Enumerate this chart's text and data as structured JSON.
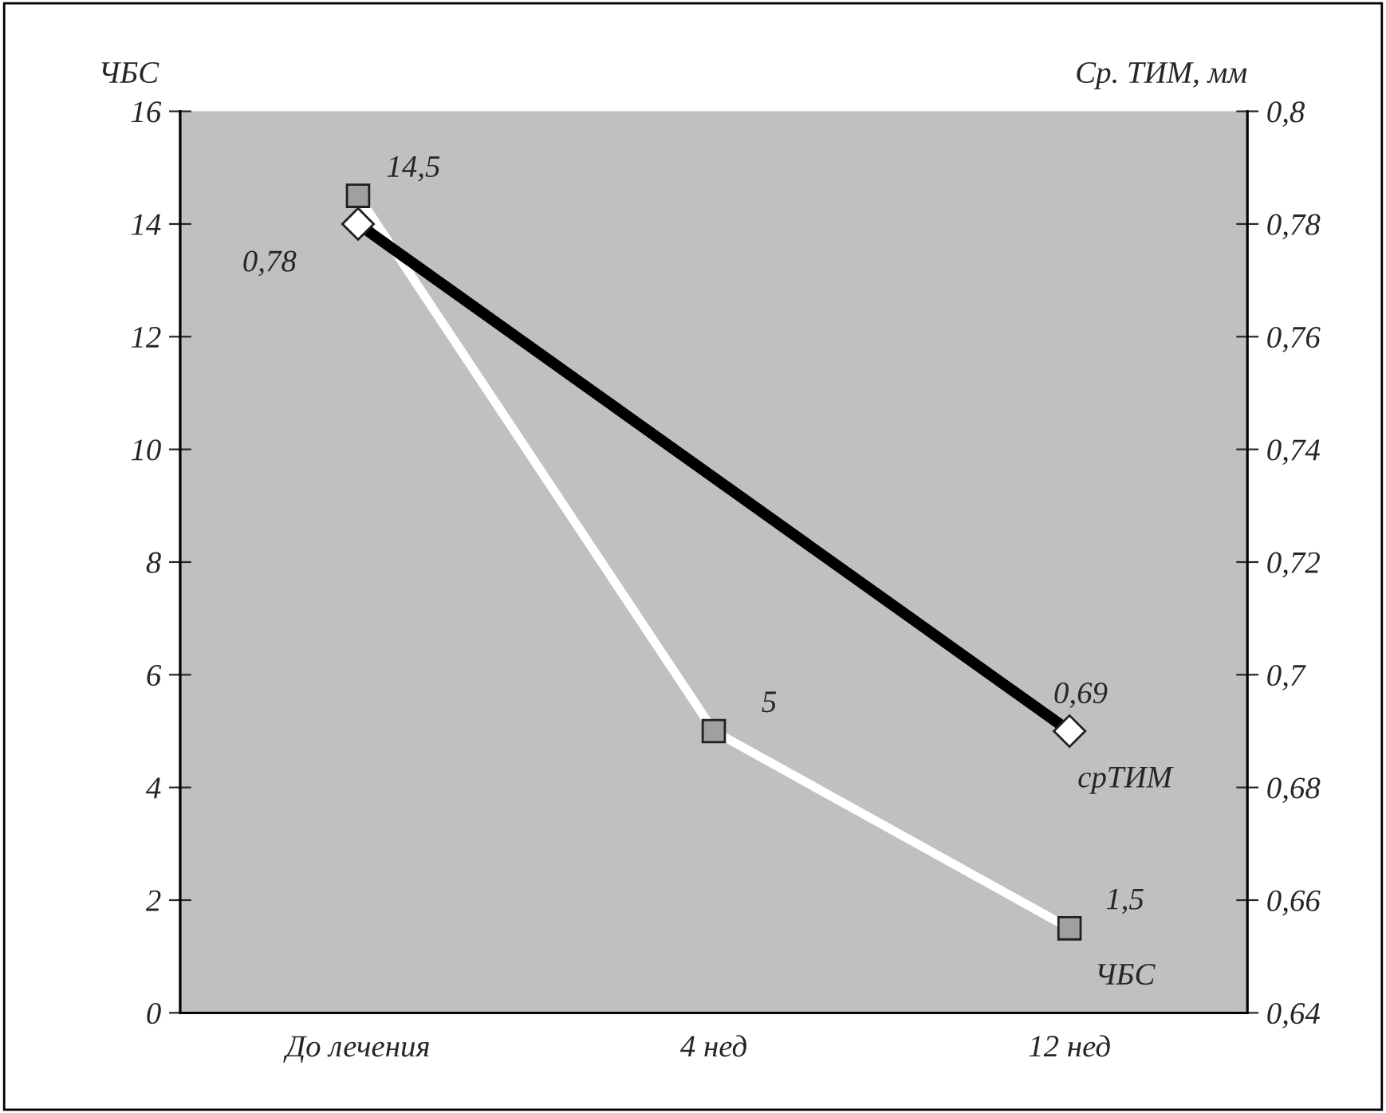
{
  "chart_data": {
    "type": "line",
    "ylabel": "ЧБС",
    "y2label": "Ср. ТИМ, мм",
    "categories": [
      "До лечения",
      "4 нед",
      "12 нед"
    ],
    "series": [
      {
        "name": "ЧБС",
        "color": "#ffffff",
        "marker": "square",
        "values": [
          14.5,
          5,
          1.5
        ],
        "value_labels": [
          "14,5",
          "5",
          "1,5"
        ]
      },
      {
        "name": "срТИМ",
        "color": "#000000",
        "marker": "diamond",
        "axis": "y2",
        "values": [
          0.78,
          null,
          0.69
        ],
        "value_labels": [
          "0,78",
          null,
          "0,69"
        ]
      }
    ],
    "ylim": [
      0,
      16
    ],
    "yticks": [
      0,
      2,
      4,
      6,
      8,
      10,
      12,
      14,
      16
    ],
    "y2lim": [
      0.64,
      0.8
    ],
    "y2ticks": [
      {
        "value": 0.64,
        "label": "0,64"
      },
      {
        "value": 0.66,
        "label": "0,66"
      },
      {
        "value": 0.68,
        "label": "0,68"
      },
      {
        "value": 0.7,
        "label": "0,7"
      },
      {
        "value": 0.72,
        "label": "0,72"
      },
      {
        "value": 0.74,
        "label": "0,74"
      },
      {
        "value": 0.76,
        "label": "0,76"
      },
      {
        "value": 0.78,
        "label": "0,78"
      },
      {
        "value": 0.8,
        "label": "0,8"
      }
    ],
    "grid": false,
    "legend": false
  }
}
